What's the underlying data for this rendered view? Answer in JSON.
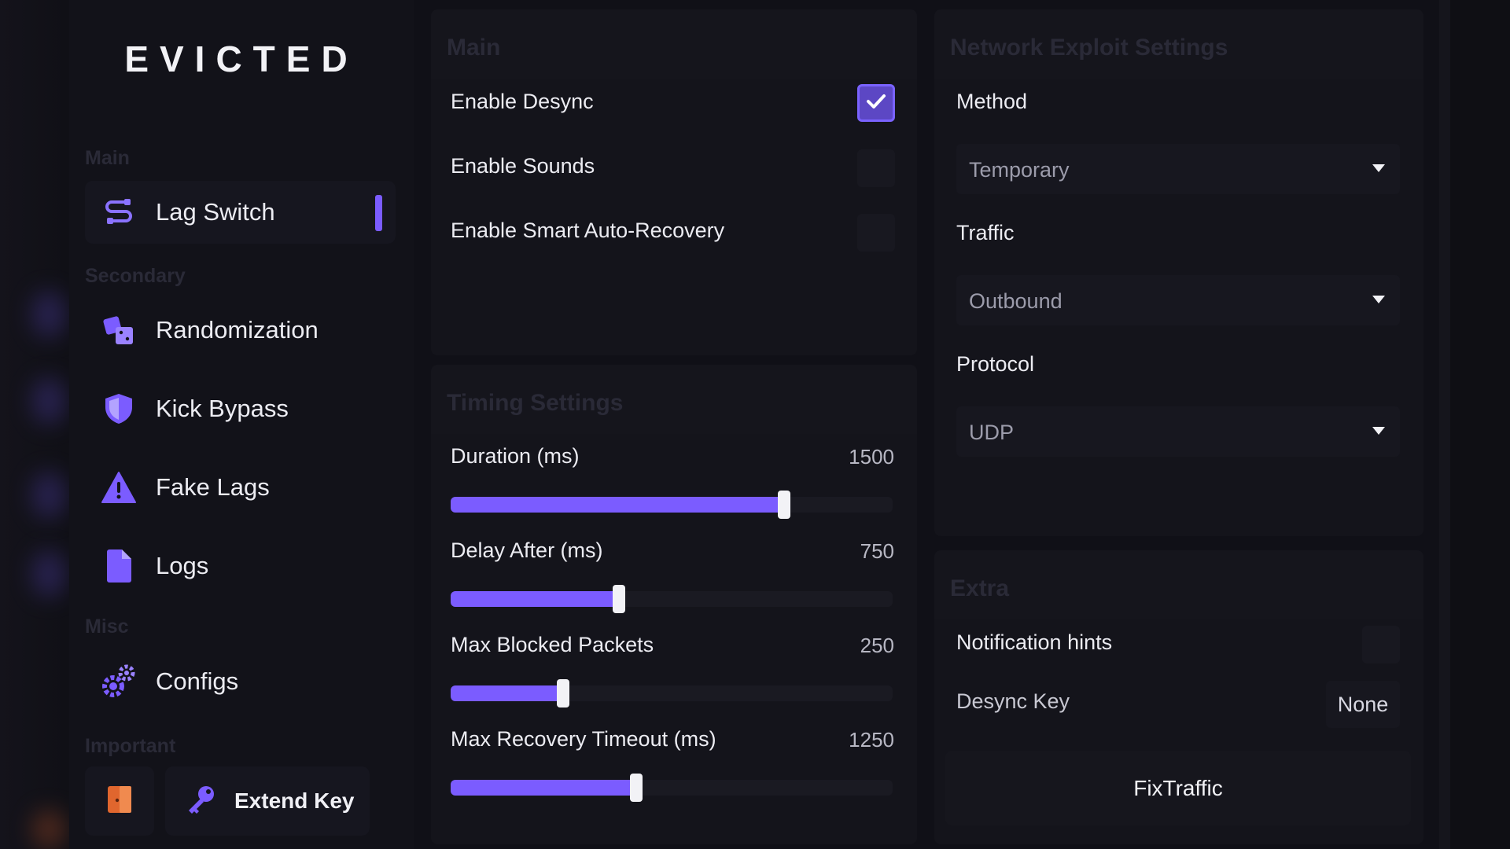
{
  "app": {
    "logo": "EVICTED"
  },
  "sidebar": {
    "sections": {
      "main": "Main",
      "secondary": "Secondary",
      "misc": "Misc",
      "important": "Important"
    },
    "items": [
      {
        "label": "Lag Switch",
        "icon": "cable-icon",
        "active": true
      },
      {
        "label": "Randomization",
        "icon": "dice-icon"
      },
      {
        "label": "Kick Bypass",
        "icon": "shield-icon"
      },
      {
        "label": "Fake Lags",
        "icon": "warning-icon"
      },
      {
        "label": "Logs",
        "icon": "file-icon"
      },
      {
        "label": "Configs",
        "icon": "gears-icon"
      }
    ],
    "bottom": {
      "exit_icon": "door-exit-icon",
      "extend_label": "Extend Key",
      "extend_icon": "key-icon"
    }
  },
  "main_panel": {
    "title": "Main",
    "toggles": [
      {
        "label": "Enable Desync",
        "checked": true
      },
      {
        "label": "Enable Sounds",
        "checked": false
      },
      {
        "label": "Enable Smart Auto-Recovery",
        "checked": false
      }
    ]
  },
  "timing_panel": {
    "title": "Timing Settings",
    "sliders": [
      {
        "label": "Duration (ms)",
        "value": "1500",
        "fraction": 0.755
      },
      {
        "label": "Delay After (ms)",
        "value": "750",
        "fraction": 0.38
      },
      {
        "label": "Max Blocked Packets",
        "value": "250",
        "fraction": 0.255
      },
      {
        "label": "Max Recovery Timeout (ms)",
        "value": "1250",
        "fraction": 0.42
      }
    ]
  },
  "network_panel": {
    "title": "Network Exploit Settings",
    "method": {
      "label": "Method",
      "value": "Temporary"
    },
    "traffic": {
      "label": "Traffic",
      "value": "Outbound"
    },
    "protocol": {
      "label": "Protocol",
      "value": "UDP"
    }
  },
  "extra_panel": {
    "title": "Extra",
    "notification_hints": {
      "label": "Notification hints",
      "checked": false
    },
    "desync_key": {
      "label": "Desync Key",
      "value": "None"
    },
    "fix_traffic_label": "FixTraffic"
  },
  "colors": {
    "accent": "#7b5cff",
    "background": "#101017",
    "panel": "#14141b"
  }
}
